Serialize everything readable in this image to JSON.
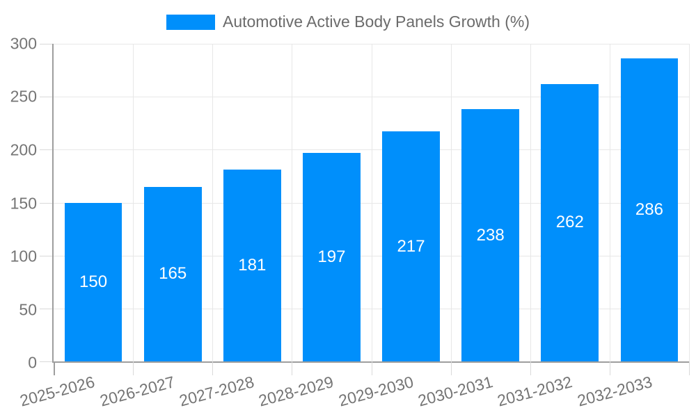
{
  "legend": {
    "items": [
      {
        "label": "Automotive Active Body Panels Growth (%)",
        "color": "#008ffb"
      }
    ]
  },
  "colors": {
    "bar": "#008ffb",
    "axis_line": "#9e9e9e",
    "gridline": "#e7e7e7",
    "tick": "#d9d9d9",
    "axis_text": "#757575",
    "legend_text": "#6b6b6b",
    "value_text": "#ffffff"
  },
  "chart_data": {
    "type": "bar",
    "title": "Automotive Active Body Panels Growth (%)",
    "series": [
      {
        "name": "Automotive Active Body Panels Growth (%)",
        "values": [
          150,
          165,
          181,
          197,
          217,
          238,
          262,
          286
        ]
      }
    ],
    "categories": [
      "2025-2026",
      "2026-2027",
      "2027-2028",
      "2028-2029",
      "2029-2030",
      "2030-2031",
      "2031-2032",
      "2032-2033"
    ],
    "xlabel": "",
    "ylabel": "",
    "ylim": [
      0,
      300
    ],
    "yticks": [
      0,
      50,
      100,
      150,
      200,
      250,
      300
    ],
    "grid": true,
    "legend_position": "top",
    "value_labels_position": "inside-center",
    "bar_color": "#008ffb"
  }
}
